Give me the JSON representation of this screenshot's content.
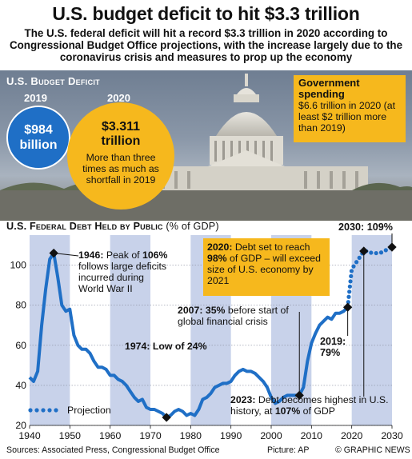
{
  "title": "U.S. budget deficit to hit $3.3 trillion",
  "subtitle": "The U.S. federal deficit will hit a record $3.3 trillion in 2020 according to Congressional Budget Office projections, with the increase largely due to the coronavirus crisis and measures to prop up the economy",
  "deficit": {
    "heading": "U.S. Budget Deficit",
    "y2019_label": "2019",
    "y2019_value": "$984 billion",
    "y2020_label": "2020",
    "y2020_value": "$3.311 trillion",
    "y2020_note": "More than three times as much as shortfall in 2019"
  },
  "gov_spending": {
    "heading": "Government spending",
    "text": "$6.6 trillion in 2020 (at least $2 trillion more than 2019)"
  },
  "chart_heading": "U.S. Federal Debt Held by Public",
  "chart_unit": "(% of GDP)",
  "annotations": {
    "a1946_bold": "1946:",
    "a1946_text1": " Peak of ",
    "a1946_bold2": "106%",
    "a1946_text2": " follows large deficits incurred during World War II",
    "a1974_text": "1974: Low of ",
    "a1974_bold": "24%",
    "a2007_bold": "2007: 35%",
    "a2007_text": " before start of global financial crisis",
    "a2019_line1": "2019:",
    "a2019_line2": "79%",
    "a2020_bold": "2020:",
    "a2020_text1": " Debt set to reach ",
    "a2020_bold2": "98%",
    "a2020_text2": " of GDP – will exceed size of U.S. economy by 2021",
    "a2030": "2030: 109%",
    "a2023_bold": "2023:",
    "a2023_text1": " Debt becomes highest in U.S. history, at ",
    "a2023_bold2": "107%",
    "a2023_text2": " of GDP"
  },
  "legend_label": "Projection",
  "footer": {
    "sources": "Sources: Associated Press, Congressional Budget Office",
    "picture": "Picture: AP",
    "brand": "© GRAPHIC NEWS"
  },
  "colors": {
    "line": "#1f6fc6",
    "band": "#c8d2ea",
    "accent": "#f6b81d",
    "blue_circle": "#1f6fc6"
  },
  "chart_data": {
    "type": "line",
    "title": "U.S. Federal Debt Held by Public",
    "ylabel": "% of GDP",
    "xlim": [
      1940,
      2030
    ],
    "ylim": [
      20,
      115
    ],
    "x_ticks": [
      1940,
      1950,
      1960,
      1970,
      1980,
      1990,
      2000,
      2010,
      2020,
      2030
    ],
    "y_ticks": [
      20,
      40,
      60,
      80,
      100
    ],
    "grid": true,
    "legend": "bottom-left",
    "series": [
      {
        "name": "",
        "style": "solid",
        "x": [
          1940,
          1941,
          1942,
          1943,
          1944,
          1945,
          1946,
          1947,
          1948,
          1949,
          1950,
          1951,
          1952,
          1953,
          1954,
          1955,
          1956,
          1957,
          1958,
          1959,
          1960,
          1961,
          1962,
          1963,
          1964,
          1965,
          1966,
          1967,
          1968,
          1969,
          1970,
          1971,
          1972,
          1973,
          1974,
          1975,
          1976,
          1977,
          1978,
          1979,
          1980,
          1981,
          1982,
          1983,
          1984,
          1985,
          1986,
          1987,
          1988,
          1989,
          1990,
          1991,
          1992,
          1993,
          1994,
          1995,
          1996,
          1997,
          1998,
          1999,
          2000,
          2001,
          2002,
          2003,
          2004,
          2005,
          2006,
          2007,
          2008,
          2009,
          2010,
          2011,
          2012,
          2013,
          2014,
          2015,
          2016,
          2017,
          2018,
          2019
        ],
        "y": [
          44,
          42,
          47,
          70,
          88,
          103,
          106,
          94,
          80,
          77,
          78,
          65,
          60,
          58,
          58,
          56,
          52,
          49,
          49,
          48,
          45,
          45,
          43,
          42,
          40,
          37,
          34,
          32,
          33,
          29,
          28,
          28,
          27,
          26,
          24,
          25,
          27,
          28,
          27,
          25,
          26,
          25,
          28,
          33,
          34,
          36,
          39,
          40,
          41,
          41,
          42,
          45,
          47,
          48,
          47,
          47,
          46,
          44,
          42,
          39,
          34,
          31,
          32,
          34,
          35,
          35,
          35,
          35,
          39,
          52,
          61,
          66,
          70,
          72,
          74,
          73,
          76,
          76,
          77,
          79
        ]
      },
      {
        "name": "Projection",
        "style": "dotted",
        "x": [
          2019,
          2020,
          2021,
          2022,
          2023,
          2024,
          2025,
          2026,
          2027,
          2028,
          2029,
          2030
        ],
        "y": [
          79,
          98,
          101,
          104,
          107,
          107,
          106,
          106,
          106,
          107,
          108,
          109
        ]
      }
    ]
  }
}
